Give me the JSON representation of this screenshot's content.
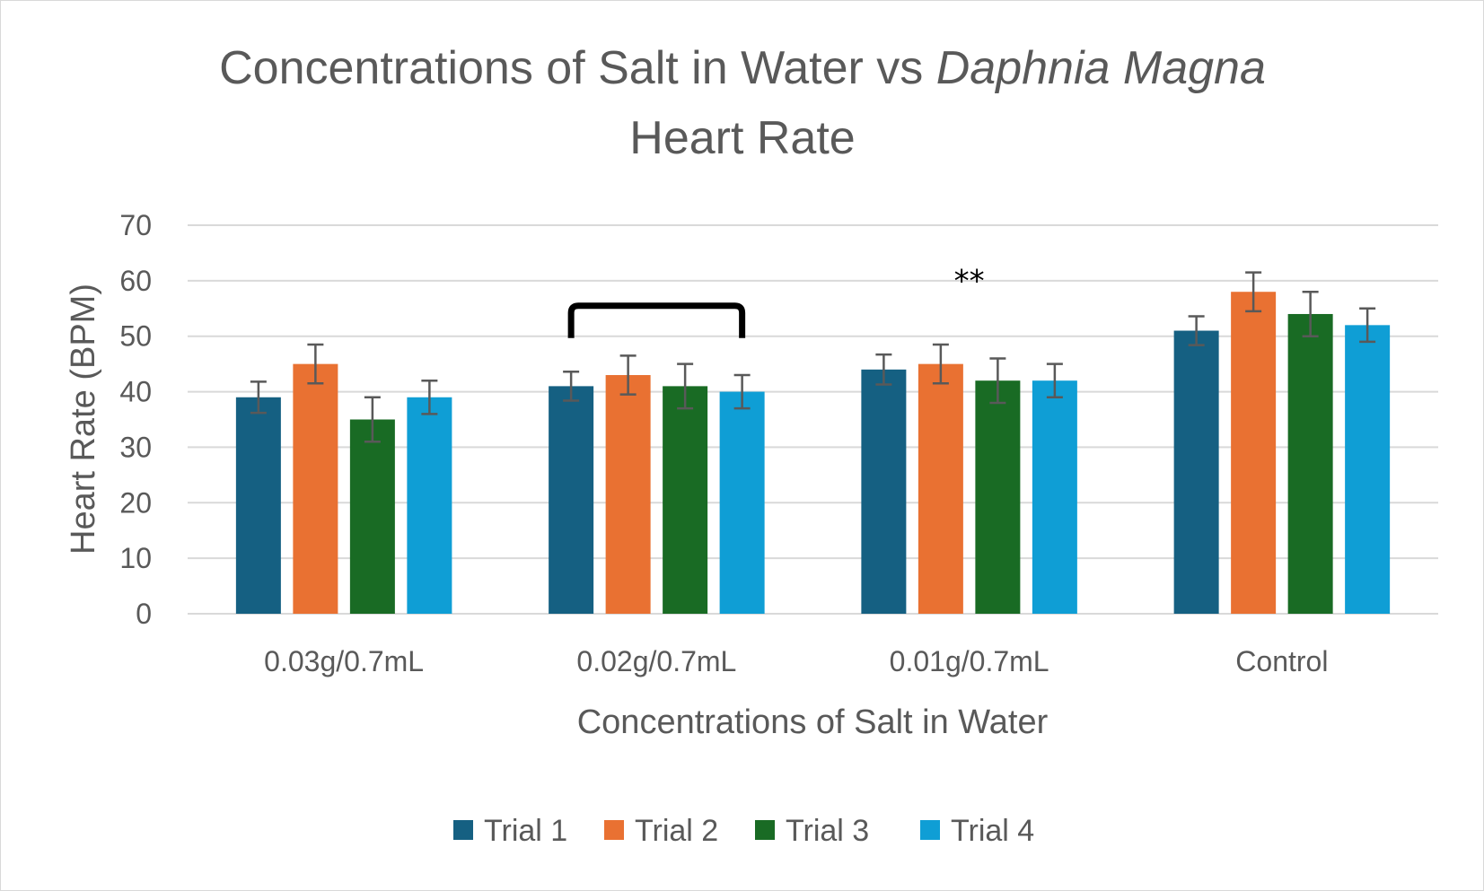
{
  "chart_data": {
    "type": "bar",
    "title": {
      "line1_prefix": "Concentrations of Salt in Water vs ",
      "line1_italic": "Daphnia Magna",
      "line2": "Heart Rate"
    },
    "xlabel": "Concentrations of Salt in Water",
    "ylabel": "Heart Rate (BPM)",
    "ylim": [
      0,
      70
    ],
    "yticks": [
      "0",
      "10",
      "20",
      "30",
      "40",
      "50",
      "60",
      "70"
    ],
    "categories": [
      "0.03g/0.7mL",
      "0.02g/0.7mL",
      "0.01g/0.7mL",
      "Control"
    ],
    "series": [
      {
        "name": "Trial 1",
        "color": "#156082",
        "values": [
          39,
          41,
          44,
          51
        ],
        "errors": [
          2.8,
          2.6,
          2.7,
          2.6
        ]
      },
      {
        "name": "Trial 2",
        "color": "#E97132",
        "values": [
          45,
          43,
          45,
          58
        ],
        "errors": [
          3.5,
          3.5,
          3.5,
          3.5
        ]
      },
      {
        "name": "Trial 3",
        "color": "#196B24",
        "values": [
          35,
          41,
          42,
          54
        ],
        "errors": [
          4.0,
          4.0,
          4.0,
          4.0
        ]
      },
      {
        "name": "Trial 4",
        "color": "#0F9ED5",
        "values": [
          39,
          40,
          42,
          52
        ],
        "errors": [
          3.0,
          3.0,
          3.0,
          3.0
        ]
      }
    ],
    "grid": true,
    "legend": "bottom",
    "annotations": [
      {
        "kind": "bracket",
        "category": "0.02g/0.7mL",
        "value": 55
      },
      {
        "kind": "text",
        "text": "**",
        "category": "0.01g/0.7mL",
        "value": 62
      }
    ],
    "colors": {
      "text": "#595959",
      "grid": "#d9d9d9",
      "error_bar": "#595959",
      "bracket": "#000000"
    }
  }
}
